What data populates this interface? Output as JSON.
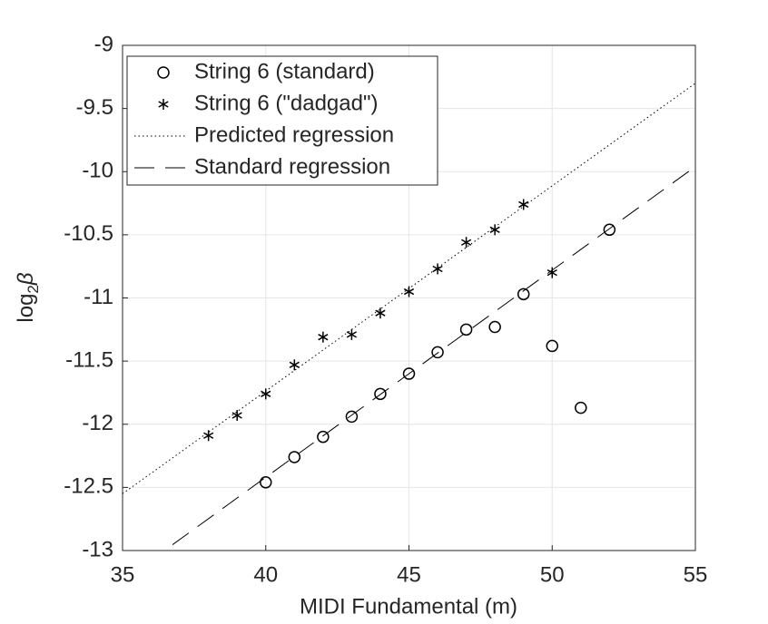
{
  "chart_data": {
    "type": "scatter",
    "xlabel": "MIDI Fundamental (m)",
    "ylabel": [
      "log",
      "2",
      "β"
    ],
    "xlim": [
      35,
      55
    ],
    "ylim": [
      -13,
      -9
    ],
    "xticks": [
      35,
      40,
      45,
      50,
      55
    ],
    "yticks": [
      -13,
      -12.5,
      -12,
      -11.5,
      -11,
      -10.5,
      -10,
      -9.5,
      -9
    ],
    "grid": true,
    "legend": "upper-left",
    "series": [
      {
        "name": "String 6 (standard)",
        "marker": "circle",
        "color": "#000000",
        "x": [
          40,
          41,
          42,
          43,
          44,
          45,
          46,
          47,
          48,
          49,
          50,
          51,
          52
        ],
        "values": [
          -12.46,
          -12.26,
          -12.1,
          -11.94,
          -11.76,
          -11.6,
          -11.43,
          -11.25,
          -11.23,
          -10.97,
          -11.38,
          -11.87,
          -10.46
        ]
      },
      {
        "name": "String 6 (\"dadgad\")",
        "marker": "asterisk",
        "color": "#000000",
        "x": [
          38,
          39,
          40,
          41,
          42,
          43,
          44,
          45,
          46,
          47,
          48,
          49,
          50
        ],
        "values": [
          -12.09,
          -11.93,
          -11.76,
          -11.53,
          -11.31,
          -11.29,
          -11.12,
          -10.95,
          -10.77,
          -10.56,
          -10.46,
          -10.26,
          -10.8
        ]
      },
      {
        "name": "Predicted regression",
        "line": "dotted",
        "color": "#000000",
        "x": [
          35,
          55
        ],
        "values": [
          -12.55,
          -9.3
        ]
      },
      {
        "name": "Standard regression",
        "line": "dashed",
        "color": "#000000",
        "x": [
          35,
          55
        ],
        "values": [
          -13.24,
          -9.96
        ]
      }
    ]
  }
}
